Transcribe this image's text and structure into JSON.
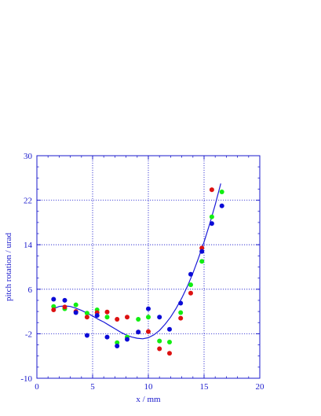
{
  "chart_data": {
    "type": "scatter",
    "title": "",
    "xlabel": "x / mm",
    "ylabel": "pitch rotation / urad",
    "xlim": [
      0,
      20
    ],
    "ylim": [
      -10,
      30
    ],
    "xticks": [
      0,
      5,
      10,
      15,
      20
    ],
    "yticks": [
      -10,
      -2,
      6,
      14,
      22,
      30
    ],
    "grid": true,
    "colors": {
      "axis": "#1a1acc",
      "grid": "#1a1acc",
      "curve": "#1a1ad8"
    },
    "series": [
      {
        "color": "#0b0bd6",
        "points": [
          [
            1.5,
            4.2
          ],
          [
            2.5,
            4.0
          ],
          [
            3.5,
            1.8
          ],
          [
            4.5,
            -2.3
          ],
          [
            5.4,
            1.3
          ],
          [
            6.3,
            -2.6
          ],
          [
            7.2,
            -4.2
          ],
          [
            8.1,
            -3.0
          ],
          [
            9.1,
            -1.7
          ],
          [
            10.0,
            2.5
          ],
          [
            11.0,
            1.0
          ],
          [
            11.9,
            -1.2
          ],
          [
            12.9,
            3.5
          ],
          [
            13.8,
            8.7
          ],
          [
            14.8,
            12.8
          ],
          [
            15.7,
            17.8
          ],
          [
            16.6,
            21.0
          ]
        ]
      },
      {
        "color": "#dd1111",
        "points": [
          [
            1.5,
            2.3
          ],
          [
            2.5,
            2.8
          ],
          [
            3.5,
            2.0
          ],
          [
            4.5,
            1.0
          ],
          [
            5.4,
            1.8
          ],
          [
            6.3,
            1.9
          ],
          [
            7.2,
            0.6
          ],
          [
            8.1,
            1.0
          ],
          [
            9.1,
            -1.7
          ],
          [
            10.0,
            -1.6
          ],
          [
            11.0,
            -4.7
          ],
          [
            11.9,
            -5.5
          ],
          [
            12.9,
            0.8
          ],
          [
            13.8,
            5.3
          ],
          [
            14.8,
            13.4
          ],
          [
            15.7,
            23.9
          ]
        ]
      },
      {
        "color": "#11ee11",
        "points": [
          [
            1.5,
            2.9
          ],
          [
            2.5,
            2.5
          ],
          [
            3.5,
            3.2
          ],
          [
            4.5,
            1.7
          ],
          [
            5.4,
            2.3
          ],
          [
            6.3,
            1.0
          ],
          [
            7.2,
            -3.6
          ],
          [
            8.1,
            -2.6
          ],
          [
            9.1,
            0.6
          ],
          [
            10.0,
            1.0
          ],
          [
            11.0,
            -3.3
          ],
          [
            11.9,
            -3.5
          ],
          [
            12.9,
            1.8
          ],
          [
            13.8,
            6.8
          ],
          [
            14.8,
            11.0
          ],
          [
            15.7,
            19.0
          ],
          [
            16.6,
            23.5
          ]
        ]
      }
    ],
    "curve": [
      [
        1.5,
        2.5
      ],
      [
        2.0,
        2.9
      ],
      [
        2.5,
        3.0
      ],
      [
        3.0,
        2.9
      ],
      [
        3.5,
        2.6
      ],
      [
        4.0,
        2.2
      ],
      [
        4.5,
        1.7
      ],
      [
        5.0,
        1.2
      ],
      [
        5.5,
        0.6
      ],
      [
        6.0,
        0.1
      ],
      [
        6.5,
        -0.5
      ],
      [
        7.0,
        -1.1
      ],
      [
        7.5,
        -1.7
      ],
      [
        8.0,
        -2.2
      ],
      [
        8.5,
        -2.6
      ],
      [
        9.0,
        -2.8
      ],
      [
        9.5,
        -2.9
      ],
      [
        10.0,
        -2.7
      ],
      [
        10.5,
        -2.2
      ],
      [
        11.0,
        -1.4
      ],
      [
        11.5,
        -0.3
      ],
      [
        12.0,
        1.0
      ],
      [
        12.5,
        2.6
      ],
      [
        13.0,
        4.4
      ],
      [
        13.5,
        6.5
      ],
      [
        14.0,
        8.9
      ],
      [
        14.5,
        11.6
      ],
      [
        15.0,
        14.5
      ],
      [
        15.5,
        17.7
      ],
      [
        16.0,
        21.2
      ],
      [
        16.5,
        25.0
      ]
    ]
  }
}
